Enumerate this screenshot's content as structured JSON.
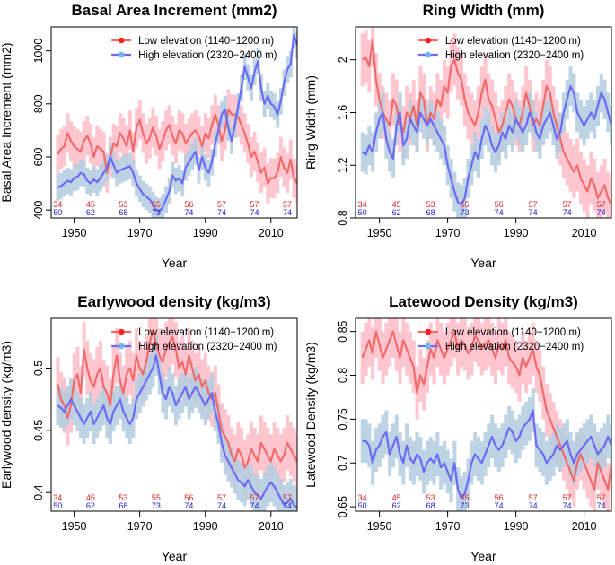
{
  "chart_data": [
    {
      "type": "line",
      "title": "Basal Area Increment (mm2)",
      "xlabel": "Year",
      "ylabel": "Basal Area Increment (mm2)",
      "xlim": [
        1943,
        2018
      ],
      "ylim": [
        370,
        1090
      ],
      "xticks": [
        1950,
        1970,
        1990,
        2010
      ],
      "yticks": [
        400,
        600,
        800,
        1000
      ],
      "x_start": 1945,
      "legend_position": "top-right",
      "legend": [
        "Low elevation (1140−1200 m)",
        "High elevation (2320−2400 m)"
      ],
      "series": [
        {
          "name": "Low elevation (1140−1200 m)",
          "color": "#f26b6b",
          "band_color": "#ffc0cb",
          "band_half_width": 75,
          "values": [
            610,
            630,
            640,
            690,
            660,
            640,
            630,
            620,
            660,
            680,
            650,
            600,
            640,
            630,
            620,
            540,
            600,
            650,
            640,
            690,
            670,
            640,
            700,
            620,
            710,
            740,
            690,
            650,
            670,
            710,
            680,
            630,
            660,
            700,
            720,
            680,
            650,
            700,
            690,
            650,
            670,
            690,
            700,
            680,
            640,
            690,
            670,
            720,
            760,
            720,
            660,
            700,
            780,
            760,
            760,
            750,
            720,
            690,
            650,
            600,
            620,
            580,
            540,
            560,
            500,
            520,
            520,
            540,
            600,
            560,
            540,
            590,
            520,
            500
          ]
        },
        {
          "name": "High elevation (2320−2400 m)",
          "color": "#6b6bf5",
          "band_color": "#b3cde0",
          "band_half_width": 50,
          "values": [
            485,
            490,
            500,
            510,
            505,
            520,
            525,
            540,
            535,
            510,
            500,
            515,
            505,
            520,
            540,
            560,
            600,
            570,
            540,
            550,
            555,
            560,
            565,
            540,
            500,
            480,
            460,
            450,
            440,
            420,
            400,
            395,
            410,
            440,
            470,
            530,
            510,
            520,
            500,
            560,
            580,
            600,
            620,
            550,
            600,
            560,
            540,
            580,
            650,
            700,
            760,
            780,
            710,
            660,
            720,
            790,
            860,
            940,
            900,
            860,
            920,
            960,
            860,
            800,
            830,
            800,
            790,
            760,
            810,
            880,
            930,
            950,
            1060,
            1020
          ]
        }
      ],
      "sample_counts": {
        "low": {
          "years": [
            1945,
            1955,
            1965,
            1975,
            1985,
            1995,
            2005,
            2015
          ],
          "values": [
            "34",
            "45",
            "53",
            "55",
            "56",
            "57",
            "57",
            "57"
          ]
        },
        "high": {
          "years": [
            1945,
            1955,
            1965,
            1975,
            1985,
            1995,
            2005,
            2015
          ],
          "values": [
            "50",
            "62",
            "68",
            "73",
            "74",
            "74",
            "74",
            "74"
          ]
        }
      }
    },
    {
      "type": "line",
      "title": "Ring Width (mm)",
      "xlabel": "Year",
      "ylabel": "Ring Width (mm)",
      "xlim": [
        1943,
        2018
      ],
      "ylim": [
        0.8,
        2.25
      ],
      "xticks": [
        1950,
        1970,
        1990,
        2010
      ],
      "yticks": [
        0.8,
        1.2,
        1.6,
        2.0
      ],
      "x_start": 1945,
      "legend_position": "top-right",
      "legend": [
        "Low elevation (1140−1200 m)",
        "High elevation (2320−2400 m)"
      ],
      "series": [
        {
          "name": "Low elevation (1140−1200 m)",
          "color": "#f26b6b",
          "band_color": "#ffc0cb",
          "band_half_width": 0.2,
          "values": [
            2.0,
            2.02,
            1.95,
            2.15,
            1.85,
            1.7,
            1.6,
            1.55,
            1.5,
            1.7,
            1.65,
            1.5,
            1.45,
            1.6,
            1.55,
            1.65,
            1.5,
            1.75,
            1.7,
            1.5,
            1.6,
            1.55,
            1.7,
            1.65,
            1.8,
            1.75,
            1.95,
            2.0,
            1.9,
            1.85,
            1.7,
            1.6,
            1.55,
            1.5,
            1.6,
            1.75,
            1.85,
            1.7,
            1.65,
            1.55,
            1.45,
            1.5,
            1.6,
            1.7,
            1.65,
            1.55,
            1.5,
            1.6,
            1.75,
            1.65,
            1.5,
            1.55,
            1.5,
            1.65,
            1.8,
            1.75,
            1.6,
            1.5,
            1.4,
            1.3,
            1.25,
            1.2,
            1.15,
            1.2,
            1.1,
            1.05,
            1.0,
            1.1,
            1.05,
            0.95,
            1.0,
            1.05,
            0.95,
            0.9
          ]
        },
        {
          "name": "High elevation (2320−2400 m)",
          "color": "#6b6bf5",
          "band_color": "#b3cde0",
          "band_half_width": 0.15,
          "values": [
            1.3,
            1.28,
            1.35,
            1.3,
            1.45,
            1.55,
            1.6,
            1.4,
            1.3,
            1.25,
            1.5,
            1.6,
            1.35,
            1.4,
            1.55,
            1.5,
            1.45,
            1.6,
            1.55,
            1.5,
            1.55,
            1.5,
            1.45,
            1.4,
            1.35,
            1.2,
            1.1,
            1.0,
            0.92,
            0.9,
            0.95,
            1.1,
            1.2,
            1.3,
            1.25,
            1.4,
            1.5,
            1.45,
            1.35,
            1.3,
            1.35,
            1.45,
            1.4,
            1.5,
            1.45,
            1.55,
            1.5,
            1.45,
            1.5,
            1.6,
            1.55,
            1.45,
            1.4,
            1.5,
            1.55,
            1.6,
            1.5,
            1.4,
            1.45,
            1.6,
            1.7,
            1.8,
            1.75,
            1.6,
            1.55,
            1.5,
            1.55,
            1.6,
            1.55,
            1.65,
            1.75,
            1.7,
            1.6,
            1.5
          ]
        }
      ],
      "sample_counts": {
        "low": {
          "years": [
            1945,
            1955,
            1965,
            1975,
            1985,
            1995,
            2005,
            2015
          ],
          "values": [
            "34",
            "45",
            "53",
            "55",
            "56",
            "57",
            "57",
            "57"
          ]
        },
        "high": {
          "years": [
            1945,
            1955,
            1965,
            1975,
            1985,
            1995,
            2005,
            2015
          ],
          "values": [
            "50",
            "62",
            "68",
            "73",
            "74",
            "74",
            "74",
            "74"
          ]
        }
      }
    },
    {
      "type": "line",
      "title": "Earlywood density (kg/m3)",
      "xlabel": "Year",
      "ylabel": "Earlywood density (kg/m3)",
      "xlim": [
        1943,
        2018
      ],
      "ylim": [
        0.385,
        0.54
      ],
      "xticks": [
        1950,
        1970,
        1990,
        2010
      ],
      "yticks": [
        0.4,
        0.45,
        0.5
      ],
      "x_start": 1945,
      "legend_position": "top-right",
      "legend": [
        "Low elevation (1140−1200 m)",
        "High elevation (2320−2400 m)"
      ],
      "series": [
        {
          "name": "Low elevation (1140−1200 m)",
          "color": "#f26b6b",
          "band_color": "#ffc0cb",
          "band_half_width": 0.022,
          "values": [
            0.487,
            0.475,
            0.47,
            0.46,
            0.47,
            0.49,
            0.495,
            0.48,
            0.515,
            0.5,
            0.49,
            0.485,
            0.495,
            0.5,
            0.485,
            0.48,
            0.47,
            0.495,
            0.51,
            0.49,
            0.48,
            0.495,
            0.5,
            0.49,
            0.51,
            0.5,
            0.495,
            0.505,
            0.52,
            0.53,
            0.52,
            0.51,
            0.505,
            0.515,
            0.52,
            0.525,
            0.515,
            0.5,
            0.505,
            0.495,
            0.51,
            0.5,
            0.49,
            0.495,
            0.485,
            0.49,
            0.48,
            0.475,
            0.48,
            0.465,
            0.45,
            0.445,
            0.44,
            0.43,
            0.425,
            0.435,
            0.43,
            0.42,
            0.425,
            0.435,
            0.43,
            0.425,
            0.44,
            0.435,
            0.43,
            0.425,
            0.435,
            0.43,
            0.425,
            0.43,
            0.44,
            0.435,
            0.43,
            0.425
          ]
        },
        {
          "name": "High elevation (2320−2400 m)",
          "color": "#6b6bf5",
          "band_color": "#b3cde0",
          "band_half_width": 0.016,
          "values": [
            0.47,
            0.468,
            0.465,
            0.47,
            0.475,
            0.47,
            0.465,
            0.46,
            0.455,
            0.46,
            0.465,
            0.455,
            0.46,
            0.465,
            0.47,
            0.46,
            0.455,
            0.465,
            0.47,
            0.475,
            0.465,
            0.46,
            0.455,
            0.46,
            0.475,
            0.48,
            0.485,
            0.49,
            0.495,
            0.5,
            0.51,
            0.495,
            0.48,
            0.475,
            0.485,
            0.48,
            0.47,
            0.475,
            0.48,
            0.485,
            0.475,
            0.48,
            0.485,
            0.48,
            0.475,
            0.47,
            0.475,
            0.48,
            0.465,
            0.455,
            0.44,
            0.43,
            0.425,
            0.42,
            0.415,
            0.41,
            0.408,
            0.405,
            0.41,
            0.405,
            0.4,
            0.398,
            0.395,
            0.4,
            0.405,
            0.408,
            0.405,
            0.4,
            0.395,
            0.39,
            0.392,
            0.395,
            0.39,
            0.388
          ]
        }
      ],
      "sample_counts": {
        "low": {
          "years": [
            1945,
            1955,
            1965,
            1975,
            1985,
            1995,
            2005,
            2015
          ],
          "values": [
            "34",
            "45",
            "53",
            "55",
            "56",
            "57",
            "57",
            "57"
          ]
        },
        "high": {
          "years": [
            1945,
            1955,
            1965,
            1975,
            1985,
            1995,
            2005,
            2015
          ],
          "values": [
            "50",
            "62",
            "68",
            "73",
            "74",
            "74",
            "74",
            "74"
          ]
        }
      }
    },
    {
      "type": "line",
      "title": "Latewood Density (kg/m3)",
      "xlabel": "Year",
      "ylabel": "Latewood Density (kg/m3)",
      "xlim": [
        1943,
        2018
      ],
      "ylim": [
        0.645,
        0.865
      ],
      "xticks": [
        1950,
        1970,
        1990,
        2010
      ],
      "yticks": [
        0.65,
        0.7,
        0.75,
        0.8,
        0.85
      ],
      "x_start": 1945,
      "legend_position": "top-right",
      "legend": [
        "Low elevation (1140−1200 m)",
        "High elevation (2320−2400 m)"
      ],
      "series": [
        {
          "name": "Low elevation (1140−1200 m)",
          "color": "#f26b6b",
          "band_color": "#ffc0cb",
          "band_half_width": 0.03,
          "values": [
            0.82,
            0.83,
            0.84,
            0.825,
            0.85,
            0.835,
            0.82,
            0.83,
            0.84,
            0.85,
            0.835,
            0.82,
            0.84,
            0.83,
            0.82,
            0.81,
            0.78,
            0.8,
            0.79,
            0.81,
            0.83,
            0.82,
            0.84,
            0.83,
            0.82,
            0.83,
            0.84,
            0.85,
            0.83,
            0.84,
            0.835,
            0.825,
            0.83,
            0.845,
            0.84,
            0.83,
            0.835,
            0.84,
            0.83,
            0.82,
            0.835,
            0.83,
            0.84,
            0.82,
            0.815,
            0.81,
            0.8,
            0.82,
            0.81,
            0.82,
            0.83,
            0.81,
            0.8,
            0.78,
            0.76,
            0.75,
            0.74,
            0.73,
            0.72,
            0.71,
            0.7,
            0.69,
            0.68,
            0.7,
            0.71,
            0.7,
            0.69,
            0.68,
            0.67,
            0.7,
            0.69,
            0.68,
            0.67,
            0.7
          ]
        },
        {
          "name": "High elevation (2320−2400 m)",
          "color": "#6b6bf5",
          "band_color": "#b3cde0",
          "band_half_width": 0.025,
          "values": [
            0.725,
            0.725,
            0.72,
            0.7,
            0.715,
            0.72,
            0.73,
            0.735,
            0.71,
            0.72,
            0.73,
            0.71,
            0.7,
            0.72,
            0.705,
            0.7,
            0.71,
            0.705,
            0.69,
            0.7,
            0.705,
            0.7,
            0.71,
            0.695,
            0.7,
            0.69,
            0.68,
            0.7,
            0.67,
            0.66,
            0.665,
            0.68,
            0.7,
            0.71,
            0.705,
            0.7,
            0.71,
            0.72,
            0.73,
            0.72,
            0.715,
            0.72,
            0.73,
            0.74,
            0.735,
            0.725,
            0.73,
            0.74,
            0.745,
            0.75,
            0.76,
            0.72,
            0.715,
            0.71,
            0.7,
            0.705,
            0.71,
            0.72,
            0.715,
            0.72,
            0.725,
            0.71,
            0.7,
            0.71,
            0.715,
            0.72,
            0.725,
            0.73,
            0.72,
            0.71,
            0.715,
            0.72,
            0.73,
            0.72
          ]
        }
      ],
      "sample_counts": {
        "low": {
          "years": [
            1945,
            1955,
            1965,
            1975,
            1985,
            1995,
            2005,
            2015
          ],
          "values": [
            "34",
            "45",
            "53",
            "55",
            "56",
            "57",
            "57",
            "57"
          ]
        },
        "high": {
          "years": [
            1945,
            1955,
            1965,
            1975,
            1985,
            1995,
            2005,
            2015
          ],
          "values": [
            "50",
            "62",
            "68",
            "73",
            "74",
            "74",
            "74",
            "74"
          ]
        }
      }
    }
  ]
}
